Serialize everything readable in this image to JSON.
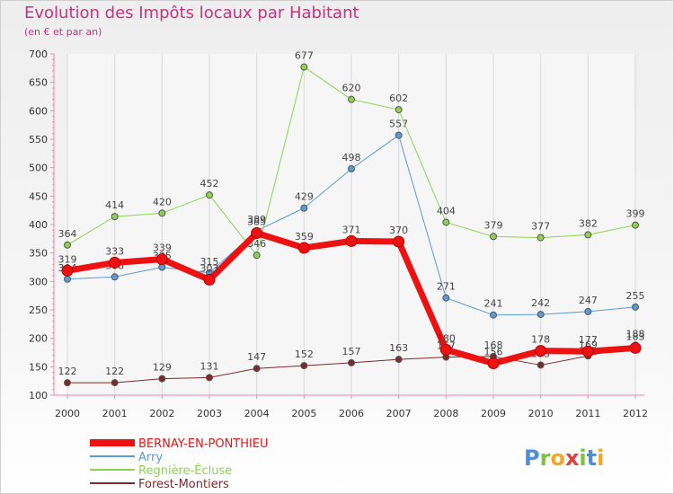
{
  "header": {
    "title": "Evolution des Impôts locaux par Habitant",
    "subtitle": "(en € et par an)"
  },
  "brand": {
    "letters": [
      "P",
      "r",
      "o",
      "x",
      "i",
      "t",
      "i"
    ],
    "colors": [
      "#4a90d9",
      "#7cc23f",
      "#f5a623",
      "#e04040",
      "#7cc23f",
      "#4a90d9",
      "#f5a623"
    ]
  },
  "chart_data": {
    "type": "line",
    "title": "Evolution des Impôts locaux par Habitant",
    "subtitle": "(en € et par an)",
    "xlabel": "",
    "ylabel": "",
    "x": [
      "2000",
      "2001",
      "2002",
      "2003",
      "2004",
      "2005",
      "2006",
      "2007",
      "2008",
      "2009",
      "2010",
      "2011",
      "2012"
    ],
    "ylim": [
      100,
      700
    ],
    "yticks": [
      100,
      150,
      200,
      250,
      300,
      350,
      400,
      450,
      500,
      550,
      600,
      650,
      700
    ],
    "grid": "vertical",
    "legend_position": "bottom-left",
    "series": [
      {
        "name": "Forest-Montiers",
        "color": "#7b2a2e",
        "width": 1,
        "values": [
          122,
          122,
          129,
          131,
          147,
          152,
          157,
          163,
          167,
          168,
          153,
          169,
          188
        ]
      },
      {
        "name": "Arry",
        "color": "#5b9bd5",
        "width": 1,
        "values": [
          304,
          308,
          325,
          315,
          389,
          429,
          498,
          557,
          271,
          241,
          242,
          247,
          255
        ]
      },
      {
        "name": "Regnière-Écluse",
        "color": "#8fd14f",
        "width": 1,
        "values": [
          364,
          414,
          420,
          452,
          346,
          677,
          620,
          602,
          404,
          379,
          377,
          382,
          399
        ]
      },
      {
        "name": "BERNAY-EN-PONTHIEU",
        "color": "#ee1111",
        "width": 7,
        "values": [
          319,
          333,
          339,
          303,
          385,
          359,
          371,
          370,
          180,
          156,
          178,
          177,
          183
        ]
      }
    ],
    "legend": [
      "BERNAY-EN-PONTHIEU",
      "Arry",
      "Regnière-Écluse",
      "Forest-Montiers"
    ]
  }
}
